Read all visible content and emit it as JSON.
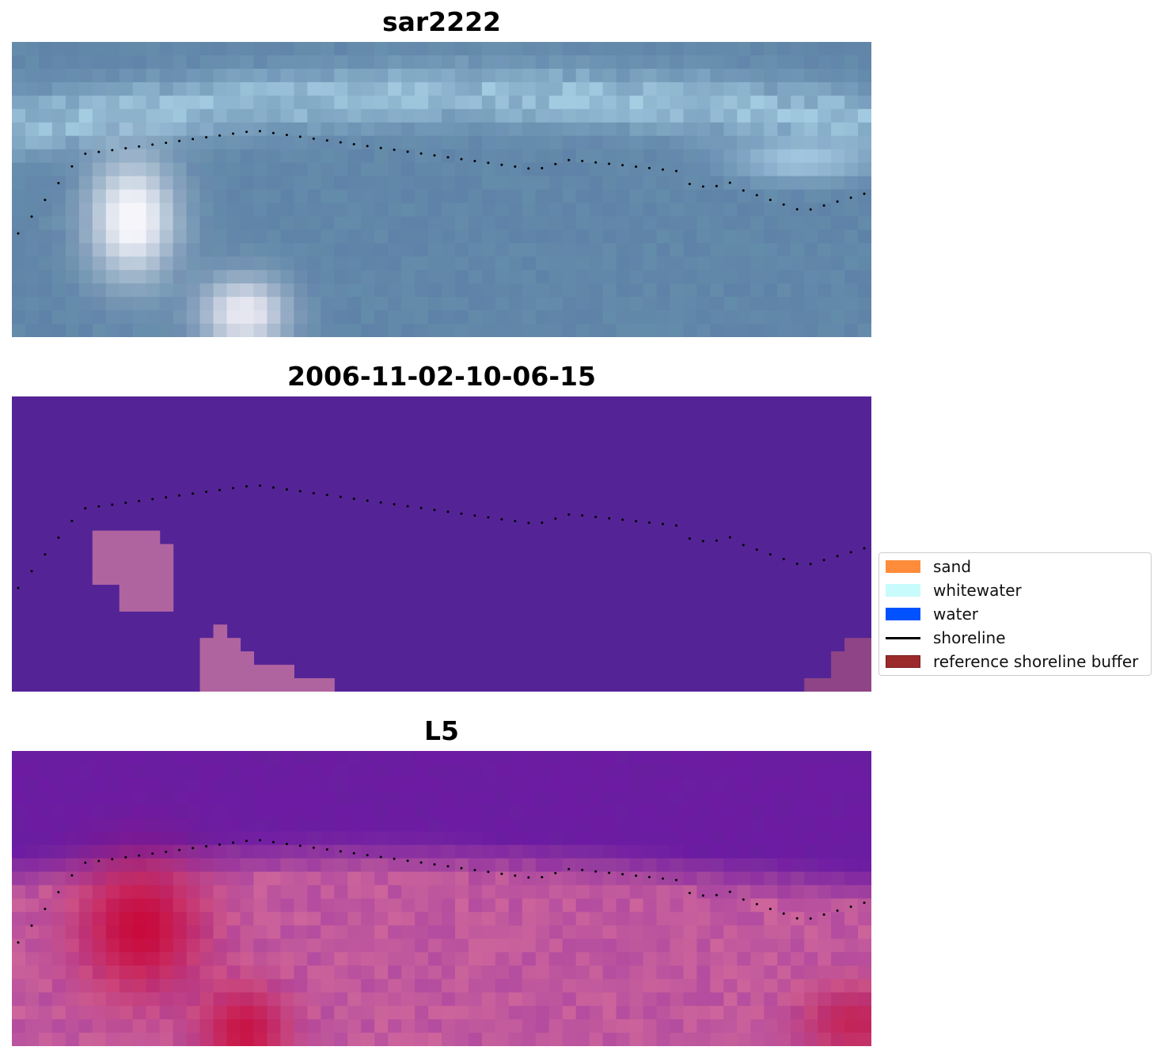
{
  "panels": [
    {
      "title": "sar2222",
      "kind": "sar"
    },
    {
      "title": "2006-11-02-10-06-15",
      "kind": "classification"
    },
    {
      "title": "L5",
      "kind": "index"
    }
  ],
  "legend": {
    "items": [
      {
        "label": "sand",
        "color": "#ff8c3a",
        "type": "patch"
      },
      {
        "label": "whitewater",
        "color": "#c8fbfb",
        "type": "patch"
      },
      {
        "label": "water",
        "color": "#0052ff",
        "type": "patch"
      },
      {
        "label": "shoreline",
        "color": "#000000",
        "type": "line"
      },
      {
        "label": "reference shoreline buffer",
        "color": "#9b2b2b",
        "edge": "#7a1a1a",
        "type": "patch"
      }
    ]
  },
  "colors": {
    "classification_bg": "#542496",
    "buffer_blob": "#b0649f",
    "buffer_corner": "#8e4486"
  }
}
